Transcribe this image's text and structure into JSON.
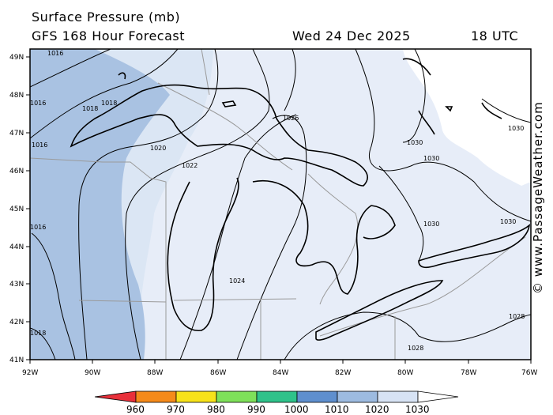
{
  "header": {
    "title": "Surface Pressure (mb)",
    "model": "GFS 168 Hour Forecast",
    "valid_date": "Wed 24 Dec 2025",
    "valid_hour": "18 UTC"
  },
  "credit": "© www.PassageWeather.com",
  "map": {
    "lat_labels": [
      "49N",
      "48N",
      "47N",
      "46N",
      "45N",
      "44N",
      "43N",
      "42N",
      "41N"
    ],
    "lon_labels": [
      "92W",
      "90W",
      "88W",
      "86W",
      "84W",
      "82W",
      "80W",
      "78W",
      "76W"
    ],
    "isobar_labels": [
      "1016",
      "1016",
      "1018",
      "1018",
      "1016",
      "1020",
      "1022",
      "1024",
      "1026",
      "1028",
      "1030",
      "1030",
      "1030",
      "1030",
      "1028",
      "1030",
      "1016",
      "1018"
    ],
    "colors": {
      "band_1016": "#a9c2e2",
      "band_1020": "#dbe6f4",
      "band_1024": "#e7edf8",
      "land_outside": "#ffffff",
      "coast": "#000000",
      "borders": "#9a9a9a"
    }
  },
  "scale": {
    "labels": [
      "960",
      "970",
      "980",
      "990",
      "1000",
      "1010",
      "1020",
      "1030"
    ],
    "colors": [
      "#e8303a",
      "#f58a1a",
      "#f7e21a",
      "#7ee05a",
      "#2fc28a",
      "#5f8fce",
      "#9dbbe0",
      "#d7e3f4",
      "#ffffff"
    ]
  }
}
